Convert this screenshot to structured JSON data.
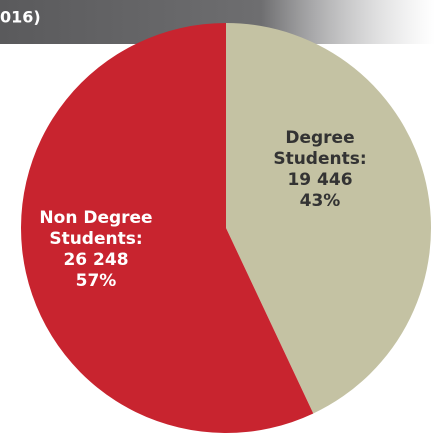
{
  "chart_data": {
    "type": "pie",
    "title": "016)",
    "categories": [
      "Degree Students:",
      "Non Degree Students:"
    ],
    "counts": [
      "19 446",
      "26 248"
    ],
    "values": [
      43,
      57
    ],
    "value_labels": [
      "43%",
      "57%"
    ],
    "colors": [
      "#c4c2a3",
      "#c8242f"
    ],
    "label_colors": [
      "#333333",
      "#ffffff"
    ],
    "start": "top",
    "direction": "clockwise"
  }
}
